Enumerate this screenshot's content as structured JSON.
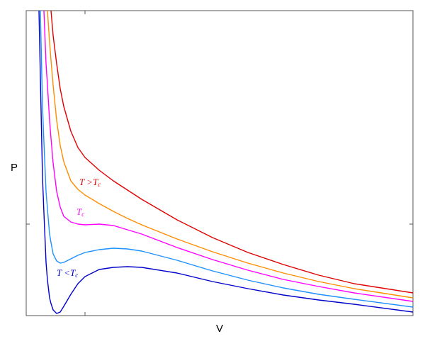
{
  "chart_data": {
    "type": "line",
    "x_label": "V",
    "y_label": "P",
    "x": [
      55,
      57,
      60,
      62,
      65,
      67,
      70,
      72,
      75,
      80,
      85,
      90,
      100,
      110,
      120,
      140,
      160,
      180,
      200,
      250,
      300,
      350,
      400,
      450,
      500,
      583
    ],
    "xlim": [
      37,
      583
    ],
    "ylim": [
      0,
      430
    ],
    "xticks": [
      120
    ],
    "yticks": [
      129
    ],
    "series": [
      {
        "color": "#0000cc",
        "values": [
          430,
          335,
          195,
          145,
          75,
          50,
          25,
          17,
          8,
          3,
          5,
          13,
          30,
          45,
          55,
          65,
          68,
          69,
          68,
          60,
          48,
          38,
          29,
          22,
          16,
          5
        ]
      },
      {
        "color": "#1e90ff",
        "values": [
          null,
          430,
          295,
          245,
          175,
          150,
          115,
          103,
          87,
          77,
          74,
          75,
          80,
          85,
          89,
          93,
          95,
          94,
          91,
          78,
          63,
          50,
          39,
          30,
          23,
          12
        ]
      },
      {
        "color": "#ff00ff",
        "values": [
          null,
          null,
          null,
          430,
          355,
          325,
          275,
          250,
          215,
          175,
          153,
          140,
          132,
          129,
          128,
          129,
          127,
          121,
          115,
          96,
          79,
          64,
          51,
          41,
          32,
          20
        ]
      },
      {
        "color": "#ff8c00",
        "values": [
          null,
          null,
          null,
          null,
          null,
          430,
          385,
          360,
          325,
          275,
          240,
          217,
          190,
          178,
          170,
          158,
          147,
          137,
          128,
          108,
          90,
          74,
          60,
          48,
          38,
          25
        ]
      },
      {
        "color": "#e00000",
        "values": [
          null,
          null,
          null,
          null,
          null,
          null,
          null,
          430,
          395,
          355,
          320,
          295,
          260,
          237,
          223,
          205,
          190,
          177,
          164,
          135,
          110,
          89,
          72,
          57,
          45,
          32
        ]
      }
    ],
    "annotations": [
      {
        "text": "T >T",
        "subscript": "c",
        "color": "#e00000"
      },
      {
        "text": "T",
        "subscript": "c",
        "color": "#ff00ff"
      },
      {
        "text": "T <T",
        "subscript": "c",
        "color": "#0000cc"
      }
    ]
  }
}
